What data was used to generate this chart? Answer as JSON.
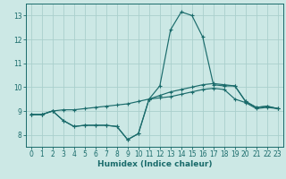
{
  "xlabel": "Humidex (Indice chaleur)",
  "xlim": [
    -0.5,
    23.5
  ],
  "ylim": [
    7.5,
    13.5
  ],
  "xticks": [
    0,
    1,
    2,
    3,
    4,
    5,
    6,
    7,
    8,
    9,
    10,
    11,
    12,
    13,
    14,
    15,
    16,
    17,
    18,
    19,
    20,
    21,
    22,
    23
  ],
  "yticks": [
    8,
    9,
    10,
    11,
    12,
    13
  ],
  "bg_color": "#cce8e5",
  "grid_color": "#aacfcc",
  "line_color": "#1a6b6b",
  "lines": [
    [
      8.85,
      8.85,
      9.0,
      8.6,
      8.35,
      8.4,
      8.4,
      8.4,
      8.35,
      7.8,
      8.05,
      9.5,
      10.05,
      12.4,
      13.15,
      13.0,
      12.1,
      10.1,
      10.05,
      10.05,
      9.4,
      9.15,
      9.2,
      9.1
    ],
    [
      8.85,
      8.85,
      9.0,
      8.6,
      8.35,
      8.4,
      8.4,
      8.4,
      8.35,
      7.8,
      8.05,
      9.5,
      9.65,
      9.8,
      9.9,
      10.0,
      10.1,
      10.15,
      10.1,
      10.05,
      9.4,
      9.15,
      9.2,
      9.1
    ],
    [
      8.85,
      8.85,
      9.0,
      9.05,
      9.05,
      9.1,
      9.15,
      9.2,
      9.25,
      9.3,
      9.4,
      9.5,
      9.55,
      9.6,
      9.7,
      9.8,
      9.9,
      9.95,
      9.9,
      9.5,
      9.35,
      9.1,
      9.15,
      9.1
    ]
  ]
}
